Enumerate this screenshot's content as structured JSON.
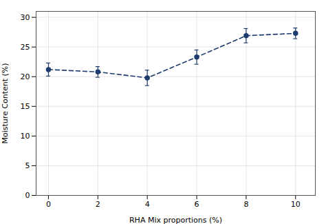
{
  "chart_data": {
    "type": "line",
    "x": [
      0,
      2,
      4,
      6,
      8,
      10
    ],
    "values": [
      21.2,
      20.8,
      19.8,
      23.3,
      26.9,
      27.3
    ],
    "yerr": [
      1.1,
      0.9,
      1.3,
      1.2,
      1.2,
      0.9
    ],
    "xlabel": "RHA Mix proportions (%)",
    "ylabel": "Moisture Content (%)",
    "xlim": [
      -0.5,
      10.8
    ],
    "ylim": [
      0,
      31
    ],
    "xticks": [
      0,
      2,
      4,
      6,
      8,
      10
    ],
    "yticks": [
      0,
      5,
      10,
      15,
      20,
      25,
      30
    ],
    "color": "#1f3c6e",
    "marker": "circle",
    "line_style": "dashed",
    "grid": true
  }
}
